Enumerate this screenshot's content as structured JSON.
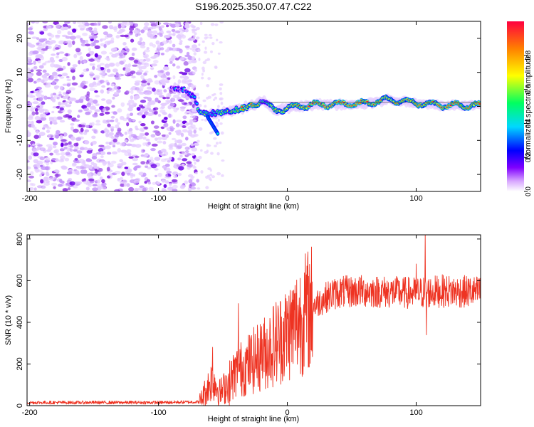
{
  "figure_title": "S196.2025.350.07.47.C22",
  "chart_data": [
    {
      "type": "heatmap",
      "title": "S196.2025.350.07.47.C22",
      "xlabel": "Height of straight line (km)",
      "ylabel": "Frequency (Hz)",
      "xlim": [
        -202,
        150
      ],
      "ylim": [
        -25,
        25
      ],
      "xticks": [
        -200,
        -100,
        0,
        100
      ],
      "yticks": [
        -20,
        -10,
        0,
        10,
        20
      ],
      "colorbar": {
        "label": "Normalized spectral amplitude",
        "range": [
          0,
          1
        ],
        "ticks": [
          "0.0",
          "0.2",
          "0.4",
          "0.6",
          "0.8"
        ],
        "colors": [
          "#ffffff",
          "#d8a8ff",
          "#8000ff",
          "#0000ff",
          "#00d8ff",
          "#00ff60",
          "#ffff00",
          "#ff8000",
          "#ff0040"
        ]
      },
      "noise_region_x": [
        -202,
        -75
      ],
      "signal_track": [
        {
          "x": -90,
          "freq": 5.0,
          "amp": 0.3
        },
        {
          "x": -80,
          "freq": 5.0,
          "amp": 0.3
        },
        {
          "x": -72,
          "freq": 2.5,
          "amp": 0.35
        },
        {
          "x": -68,
          "freq": -2.0,
          "amp": 0.45
        },
        {
          "x": -60,
          "freq": -2.0,
          "amp": 0.5
        },
        {
          "x": -55,
          "freq": -2.0,
          "amp": 0.45
        },
        {
          "x": -45,
          "freq": -1.5,
          "amp": 0.55
        },
        {
          "x": -38,
          "freq": -0.8,
          "amp": 0.75
        },
        {
          "x": -25,
          "freq": 0.5,
          "amp": 0.8
        },
        {
          "x": -20,
          "freq": 2.0,
          "amp": 0.45
        },
        {
          "x": -10,
          "freq": -1.2,
          "amp": 0.6
        },
        {
          "x": 0,
          "freq": -0.5,
          "amp": 0.7
        },
        {
          "x": 20,
          "freq": 0.5,
          "amp": 0.85
        },
        {
          "x": 60,
          "freq": 0.8,
          "amp": 0.95
        },
        {
          "x": 78,
          "freq": 2.0,
          "amp": 0.75
        },
        {
          "x": 100,
          "freq": 1.0,
          "amp": 0.8
        },
        {
          "x": 120,
          "freq": 0.3,
          "amp": 0.85
        },
        {
          "x": 150,
          "freq": 0.3,
          "amp": 0.8
        }
      ]
    },
    {
      "type": "line",
      "title": "",
      "xlabel": "Height of straight line (km)",
      "ylabel": "SNR (10 * v/v)",
      "xlim": [
        -202,
        150
      ],
      "ylim": [
        0,
        820
      ],
      "xticks": [
        -200,
        -100,
        0,
        100
      ],
      "yticks": [
        0,
        200,
        400,
        600,
        800
      ],
      "series": [
        {
          "name": "SNR",
          "color": "#ee3322",
          "envelope": [
            {
              "x": -202,
              "y": 15
            },
            {
              "x": -100,
              "y": 15
            },
            {
              "x": -68,
              "y": 18
            },
            {
              "x": -58,
              "y": 130
            },
            {
              "x": -52,
              "y": 60
            },
            {
              "x": -40,
              "y": 160
            },
            {
              "x": -30,
              "y": 200
            },
            {
              "x": -20,
              "y": 240
            },
            {
              "x": -10,
              "y": 300
            },
            {
              "x": 0,
              "y": 350
            },
            {
              "x": 10,
              "y": 420
            },
            {
              "x": 20,
              "y": 480
            },
            {
              "x": 30,
              "y": 520
            },
            {
              "x": 40,
              "y": 545
            },
            {
              "x": 60,
              "y": 550
            },
            {
              "x": 80,
              "y": 545
            },
            {
              "x": 100,
              "y": 540
            },
            {
              "x": 120,
              "y": 550
            },
            {
              "x": 150,
              "y": 545
            }
          ],
          "spikes": [
            {
              "x": -58,
              "y": 280
            },
            {
              "x": -45,
              "y": 0
            },
            {
              "x": -38,
              "y": 490
            },
            {
              "x": -20,
              "y": 380
            },
            {
              "x": 35,
              "y": 600
            },
            {
              "x": 100,
              "y": 680
            },
            {
              "x": 107,
              "y": 820
            },
            {
              "x": 108,
              "y": 340
            }
          ]
        }
      ]
    }
  ]
}
